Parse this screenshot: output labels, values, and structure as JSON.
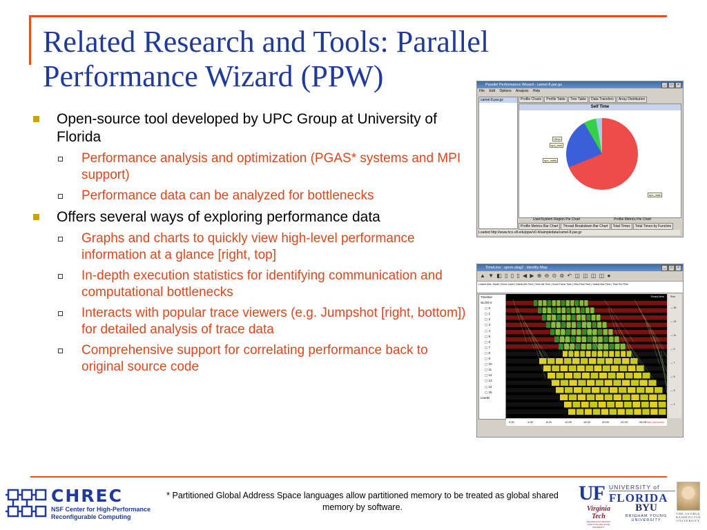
{
  "slide": {
    "title": "Related Research and Tools: Parallel Performance Wizard (PPW)",
    "bullets": [
      {
        "text": "Open-source tool developed by UPC Group at University of Florida",
        "sub": [
          "Performance analysis and optimization (PGAS* systems and MPI support)",
          "Performance data can be analyzed for bottlenecks"
        ]
      },
      {
        "text": "Offers several ways of exploring performance data",
        "sub": [
          "Graphs and charts to quickly view high-level performance information at a glance [right, top]",
          "In-depth execution statistics for identifying communication and computational bottlenecks",
          "Interacts with popular trace viewers (e.g. Jumpshot [right, bottom]) for detailed analysis of trace data",
          "Comprehensive support for correlating performance back to original source code"
        ]
      }
    ],
    "footnote": "*  Partitioned Global Address Space languages allow partitioned memory to be treated as global shared memory by software.",
    "accent_color": "#e2501c",
    "title_color": "#1f3a9a",
    "sub_bullet_color": "#e2451a"
  },
  "ppw_window": {
    "title": "Parallel Performance Wizard - camel-8.par.gz",
    "menu": [
      "File",
      "Edit",
      "Options",
      "Analysis",
      "Help"
    ],
    "file": "camel-8.par.gz",
    "tabs": [
      "Profile Charts",
      "Profile Table",
      "Tree Table",
      "Data Transfers",
      "Array Distribution"
    ],
    "chart_title": "Self Time",
    "pie_labels": [
      "upc_main",
      "upc_notify",
      "upc_lock",
      "Other"
    ],
    "subtabs_top": [
      "User/System Region Pie Chart",
      "Profile Metrics Pie Chart"
    ],
    "subtabs_bottom": [
      "Profile Metrics Bar Chart",
      "Thread Breakdown Bar Chart",
      "Total Times",
      "Total Times by Function"
    ],
    "status": "Loaded http://www.hcs.ufl.edu/ppw/v0.4/sampledata/camel-8.par.gz"
  },
  "jumpshot_window": {
    "title": "TimeLine : upcm.slog2 : Identity Map",
    "info_headers": [
      "Lowest Max. Depth",
      "Zoom Level",
      "Global Min Time",
      "View Init Time",
      "Zoom Focus Time",
      "View Final Time",
      "Global Max Time",
      "Time Per Pixel"
    ],
    "timeline_label": "Timeline",
    "legend": "Timed item",
    "tree_root": "SLOG-2",
    "threads": [
      "0",
      "1",
      "2",
      "3",
      "4",
      "5",
      "6",
      "7",
      "8",
      "9",
      "10",
      "11",
      "12",
      "13",
      "14",
      "15"
    ],
    "ruler_ticks": [
      "0.00",
      "4.00",
      "8.00",
      "12.00",
      "16.00",
      "20.00",
      "24.00",
      "28.00"
    ],
    "time_unit": "Time (seconds)",
    "side_label": "Row",
    "side_ticks": [
      "15",
      "13",
      "11",
      "9",
      "7",
      "5",
      "3",
      "1"
    ],
    "line_id": "LineID"
  },
  "logos": {
    "chrec_name": "CHREC",
    "chrec_sub1": "NSF Center for High-Performance",
    "chrec_sub2": "Reconfigurable Computing",
    "uf_mark": "UF",
    "uf_line1": "UNIVERSITY of",
    "uf_line2": "FLORIDA",
    "vt_line1": "Virginia",
    "vt_line2": "Tech",
    "vt_sub": "VIRGINIA POLYTECHNIC INSTITUTE AND STATE UNIVERSITY",
    "byu_mark": "BYU",
    "byu_sub": "BRIGHAM YOUNG",
    "byu_sub2": "UNIVERSITY",
    "gw_text": "THE GEORGE WASHINGTON UNIVERSITY"
  }
}
